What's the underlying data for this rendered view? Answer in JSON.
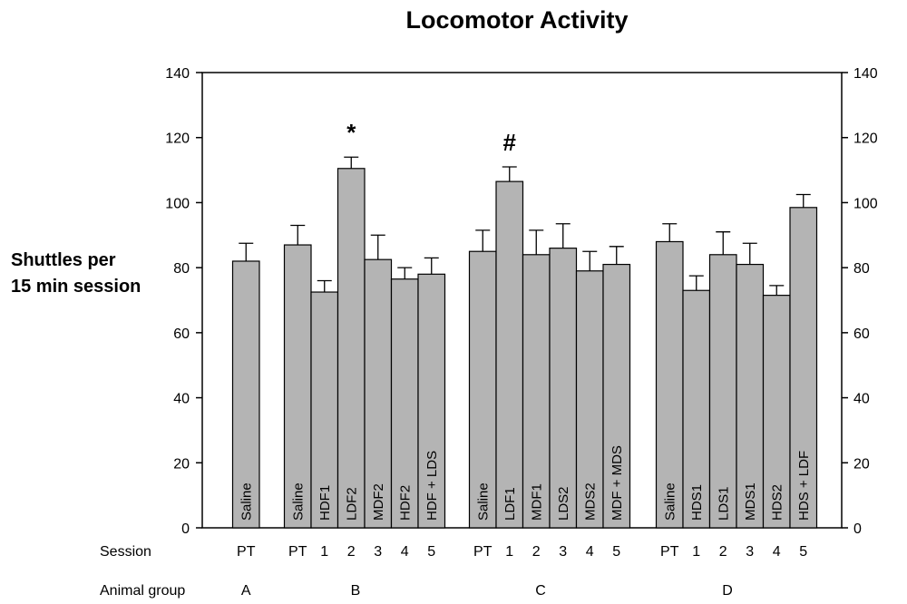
{
  "chart_data": {
    "type": "bar",
    "title": "Locomotor Activity",
    "ylabel": [
      "Shuttles per",
      "15 min session"
    ],
    "xlabel": "",
    "ylim": [
      0,
      140
    ],
    "yticks": [
      0,
      20,
      40,
      60,
      80,
      100,
      120,
      140
    ],
    "row_labels": {
      "session": "Session",
      "group": "Animal group"
    },
    "groups": [
      {
        "name": "A",
        "bars": [
          {
            "label": "Saline",
            "session": "PT",
            "value": 82,
            "error": 5.5
          }
        ]
      },
      {
        "name": "B",
        "bars": [
          {
            "label": "Saline",
            "session": "PT",
            "value": 87,
            "error": 6
          },
          {
            "label": "HDF1",
            "session": "1",
            "value": 72.5,
            "error": 3.5
          },
          {
            "label": "LDF2",
            "session": "2",
            "value": 110.5,
            "error": 3.5,
            "annotation": "*"
          },
          {
            "label": "MDF2",
            "session": "3",
            "value": 82.5,
            "error": 7.5
          },
          {
            "label": "HDF2",
            "session": "4",
            "value": 76.5,
            "error": 3.5
          },
          {
            "label": "HDF + LDS",
            "session": "5",
            "value": 78,
            "error": 5
          }
        ]
      },
      {
        "name": "C",
        "bars": [
          {
            "label": "Saline",
            "session": "PT",
            "value": 85,
            "error": 6.5
          },
          {
            "label": "LDF1",
            "session": "1",
            "value": 106.5,
            "error": 4.5,
            "annotation": "#"
          },
          {
            "label": "MDF1",
            "session": "2",
            "value": 84,
            "error": 7.5
          },
          {
            "label": "LDS2",
            "session": "3",
            "value": 86,
            "error": 7.5
          },
          {
            "label": "MDS2",
            "session": "4",
            "value": 79,
            "error": 6
          },
          {
            "label": "MDF + MDS",
            "session": "5",
            "value": 81,
            "error": 5.5
          }
        ]
      },
      {
        "name": "D",
        "bars": [
          {
            "label": "Saline",
            "session": "PT",
            "value": 88,
            "error": 5.5
          },
          {
            "label": "HDS1",
            "session": "1",
            "value": 73,
            "error": 4.5
          },
          {
            "label": "LDS1",
            "session": "2",
            "value": 84,
            "error": 7
          },
          {
            "label": "MDS1",
            "session": "3",
            "value": 81,
            "error": 6.5
          },
          {
            "label": "HDS2",
            "session": "4",
            "value": 71.5,
            "error": 3
          },
          {
            "label": "HDS + LDF",
            "session": "5",
            "value": 98.5,
            "error": 4
          }
        ]
      }
    ],
    "colors": {
      "bar_fill": "#b4b4b4",
      "bar_stroke": "#000000",
      "axis": "#000000"
    }
  }
}
